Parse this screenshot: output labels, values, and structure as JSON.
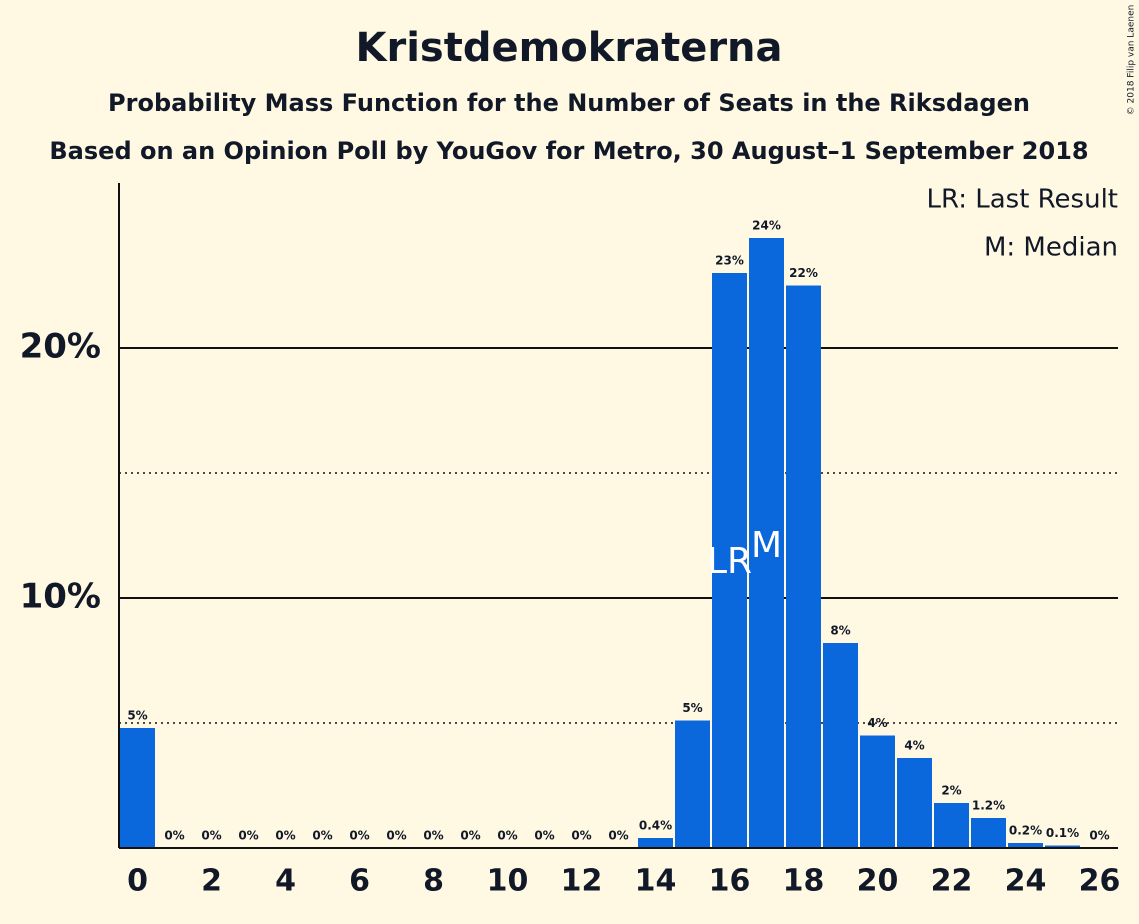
{
  "chart_data": {
    "type": "bar",
    "title": "Kristdemokraterna",
    "subtitle": "Probability Mass Function for the Number of Seats in the Riksdagen",
    "subtitle2": "Based on an Opinion Poll by YouGov for Metro, 30 August–1 September 2018",
    "copyright": "© 2018 Filip van Laenen",
    "x": [
      0,
      1,
      2,
      3,
      4,
      5,
      6,
      7,
      8,
      9,
      10,
      11,
      12,
      13,
      14,
      15,
      16,
      17,
      18,
      19,
      20,
      21,
      22,
      23,
      24,
      25,
      26
    ],
    "values": [
      4.8,
      0,
      0,
      0,
      0,
      0,
      0,
      0,
      0,
      0,
      0,
      0,
      0,
      0,
      0.4,
      5.1,
      23.0,
      24.4,
      22.5,
      8.2,
      4.5,
      3.6,
      1.8,
      1.2,
      0.2,
      0.1,
      0
    ],
    "value_labels": [
      "5%",
      "0%",
      "0%",
      "0%",
      "0%",
      "0%",
      "0%",
      "0%",
      "0%",
      "0%",
      "0%",
      "0%",
      "0%",
      "0%",
      "0.4%",
      "5%",
      "23%",
      "24%",
      "22%",
      "8%",
      "4%",
      "4%",
      "2%",
      "1.2%",
      "0.2%",
      "0.1%",
      "0%"
    ],
    "color": "#0b67dc",
    "xlim": [
      -0.5,
      26.5
    ],
    "xticks": [
      0,
      2,
      4,
      6,
      8,
      10,
      12,
      14,
      16,
      18,
      20,
      22,
      24,
      26
    ],
    "ylim": [
      0,
      26.6
    ],
    "yticks": [
      {
        "value": 10,
        "label": "10%"
      },
      {
        "value": 20,
        "label": "20%"
      }
    ],
    "minor_gridlines": [
      5,
      15
    ],
    "annotations": [
      {
        "x": 16,
        "label": "LR"
      },
      {
        "x": 17,
        "label": "M"
      }
    ],
    "legend": [
      "LR: Last Result",
      "M: Median"
    ]
  }
}
